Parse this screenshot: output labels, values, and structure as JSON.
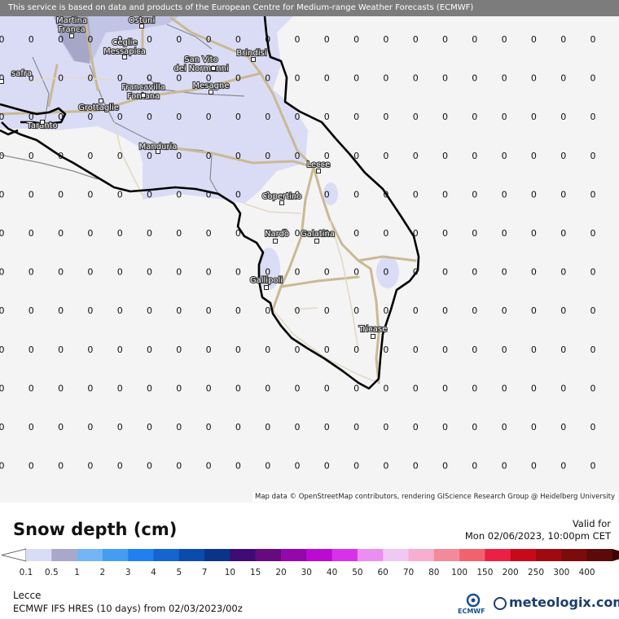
{
  "banner": "This service is based on data and products of the European Centre for Medium-range Weather Forecasts (ECMWF)",
  "map": {
    "attribution": "Map data © OpenStreetMap contributors, rendering GIScience Research Group @ Heidelberg University",
    "grid_value": "0",
    "cities": [
      {
        "name": "Martina Franca",
        "lines": [
          "Martina",
          "Franca"
        ]
      },
      {
        "name": "Ostuni",
        "lines": [
          "Ostuni"
        ]
      },
      {
        "name": "Ceglie Messapica",
        "lines": [
          "Ceglie",
          "Messapica"
        ]
      },
      {
        "name": "San Vito dei Normanni",
        "lines": [
          "San Vito",
          "dei Normanni"
        ]
      },
      {
        "name": "Brindisi",
        "lines": [
          "Brindisi"
        ]
      },
      {
        "name": "Massafra",
        "lines": [
          "safra"
        ]
      },
      {
        "name": "Francavilla Fontana",
        "lines": [
          "Francavilla",
          "Fontana"
        ]
      },
      {
        "name": "Mesagne",
        "lines": [
          "Mesagne"
        ]
      },
      {
        "name": "Grottaglie",
        "lines": [
          "Grottaglie"
        ]
      },
      {
        "name": "Taranto",
        "lines": [
          "Taranto"
        ]
      },
      {
        "name": "Manduria",
        "lines": [
          "Manduria"
        ]
      },
      {
        "name": "Lecce",
        "lines": [
          "Lecce"
        ]
      },
      {
        "name": "Copertino",
        "lines": [
          "Copertino"
        ]
      },
      {
        "name": "Nardò",
        "lines": [
          "Nardò"
        ]
      },
      {
        "name": "Galatina",
        "lines": [
          "Galatina"
        ]
      },
      {
        "name": "Gallipoli",
        "lines": [
          "Gallipoli"
        ]
      },
      {
        "name": "Tricase",
        "lines": [
          "Tricase"
        ]
      }
    ]
  },
  "legend": {
    "title": "Snow depth (cm)",
    "valid_label": "Valid for",
    "valid_time": "Mon 02/06/2023, 10:00pm CET",
    "labels": [
      "0.1",
      "0.5",
      "1",
      "2",
      "3",
      "4",
      "5",
      "7",
      "10",
      "15",
      "20",
      "30",
      "40",
      "50",
      "60",
      "70",
      "80",
      "100",
      "150",
      "200",
      "250",
      "300",
      "400"
    ],
    "colors": [
      "#d8dcf7",
      "#a9a8cb",
      "#74b5f5",
      "#459df2",
      "#2180f0",
      "#1465cf",
      "#0b4bac",
      "#0a3488",
      "#3f0b74",
      "#660a7f",
      "#9407ab",
      "#bd0ad2",
      "#d732ea",
      "#eb8ef2",
      "#f1c7f3",
      "#f7aecf",
      "#f28a9c",
      "#f2626d",
      "#ec1f47",
      "#c60a1a",
      "#9f0a12",
      "#7c0b0e",
      "#5b0a0a"
    ]
  },
  "footer": {
    "location": "Lecce",
    "model": "ECMWF IFS HRES (10 days) from 02/03/2023/00z",
    "ecmwf_label": "ECMWF",
    "brand": "meteologix.com"
  }
}
